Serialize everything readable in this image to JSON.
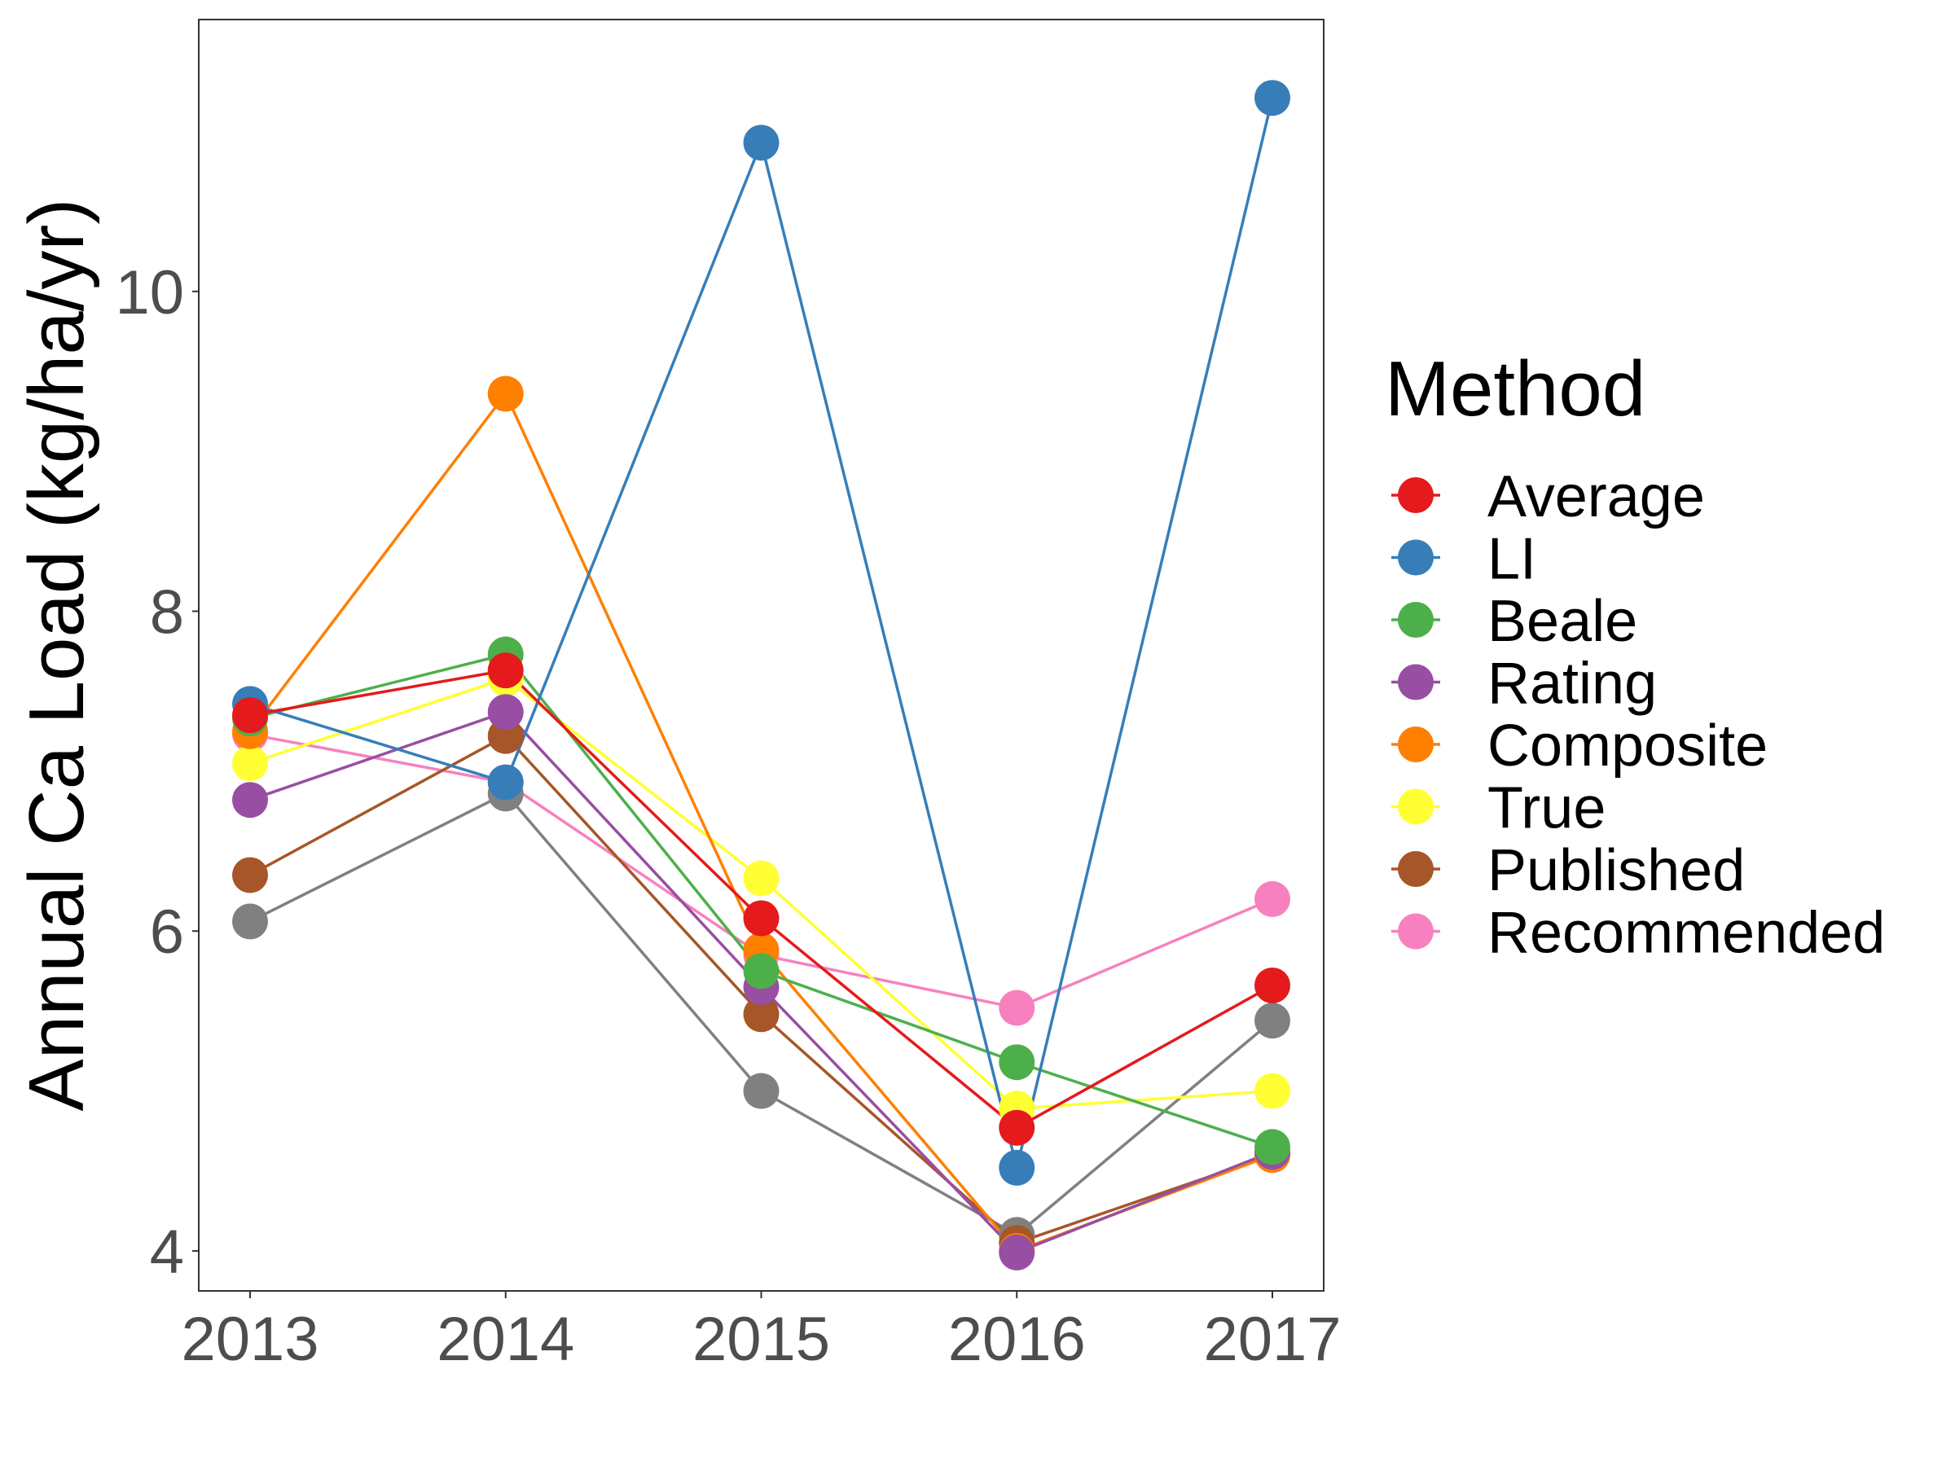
{
  "chart_data": {
    "type": "line",
    "x": [
      2013,
      2014,
      2015,
      2016,
      2017
    ],
    "ylabel": "Annual Ca Load (kg/ha/yr)",
    "xlabel": "",
    "ylim": [
      3.75,
      11.7
    ],
    "yticks": [
      4,
      6,
      8,
      10
    ],
    "grid": false,
    "legend": {
      "title": "Method",
      "position": "right"
    },
    "series": [
      {
        "name": "Average",
        "color": "#E41A1C",
        "values": [
          7.35,
          7.63,
          6.08,
          4.77,
          5.66
        ]
      },
      {
        "name": "LI",
        "color": "#377EB8",
        "values": [
          7.42,
          6.93,
          10.93,
          4.52,
          11.21
        ]
      },
      {
        "name": "Beale",
        "color": "#4DAF4A",
        "values": [
          7.33,
          7.73,
          5.75,
          5.18,
          4.65
        ]
      },
      {
        "name": "Rating",
        "color": "#984EA3",
        "values": [
          6.82,
          7.37,
          5.65,
          3.99,
          4.62
        ]
      },
      {
        "name": "Composite",
        "color": "#FF7F00",
        "values": [
          7.25,
          9.36,
          5.88,
          4.0,
          4.6
        ]
      },
      {
        "name": "True",
        "color": "#FFFF33",
        "values": [
          7.05,
          7.58,
          6.33,
          4.89,
          5.0
        ]
      },
      {
        "name": "Published",
        "color": "#A65628",
        "values": [
          6.35,
          7.22,
          5.48,
          4.05,
          4.6
        ]
      },
      {
        "name": "Recommended",
        "color": "#F781BF",
        "values": [
          7.23,
          6.93,
          5.85,
          5.52,
          6.2
        ]
      },
      {
        "name": "",
        "color": "#808080",
        "values": [
          6.06,
          6.86,
          5.0,
          4.1,
          5.44
        ]
      }
    ]
  }
}
